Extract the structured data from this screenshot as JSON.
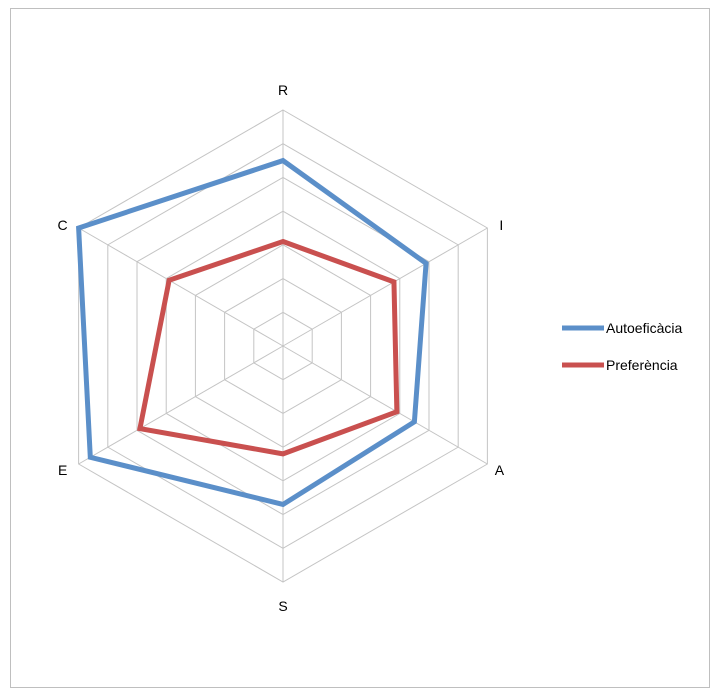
{
  "chart_data": {
    "type": "radar",
    "axes": [
      "R",
      "I",
      "A",
      "S",
      "E",
      "C"
    ],
    "rmax": 7,
    "rings": 7,
    "grid": true,
    "legend_position": "right",
    "series": [
      {
        "name": "Autoeficàcia",
        "color": "#5b8fc9",
        "values": [
          5.5,
          4.9,
          4.5,
          4.7,
          6.6,
          7.0
        ]
      },
      {
        "name": "Preferència",
        "color": "#c9504f",
        "values": [
          3.1,
          3.8,
          3.9,
          3.2,
          4.9,
          3.9
        ]
      }
    ]
  }
}
